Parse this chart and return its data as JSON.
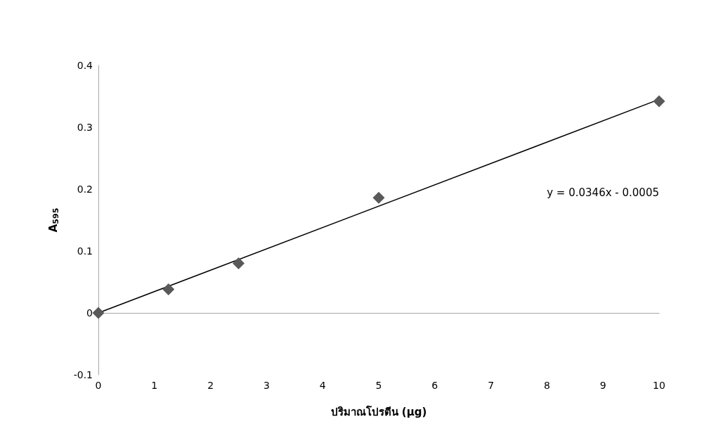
{
  "chart_data": {
    "type": "scatter",
    "xlabel": "ปริมาณโปรตีน (µg)",
    "ylabel": "A$_{595}$",
    "xlim": [
      0,
      10
    ],
    "xticks": [
      0,
      1,
      2,
      3,
      4,
      5,
      6,
      7,
      8,
      9,
      10
    ],
    "ylim": [
      -0.1,
      0.4
    ],
    "yticks": [
      -0.1,
      0,
      0.1,
      0.2,
      0.3,
      0.4
    ],
    "series": [
      {
        "type": "line",
        "color": "#000000",
        "marker": "none",
        "line_style": "solid",
        "x": [
          0,
          10
        ],
        "values": [
          0,
          0.345
        ]
      },
      {
        "color": "#595959",
        "marker": "diamond",
        "x": [
          0,
          1.25,
          2.5,
          5,
          10
        ],
        "values": [
          0,
          0.038,
          0.08,
          0.186,
          0.342
        ]
      }
    ],
    "annotations": [
      "y = 0.0346x - 0.0005"
    ]
  }
}
